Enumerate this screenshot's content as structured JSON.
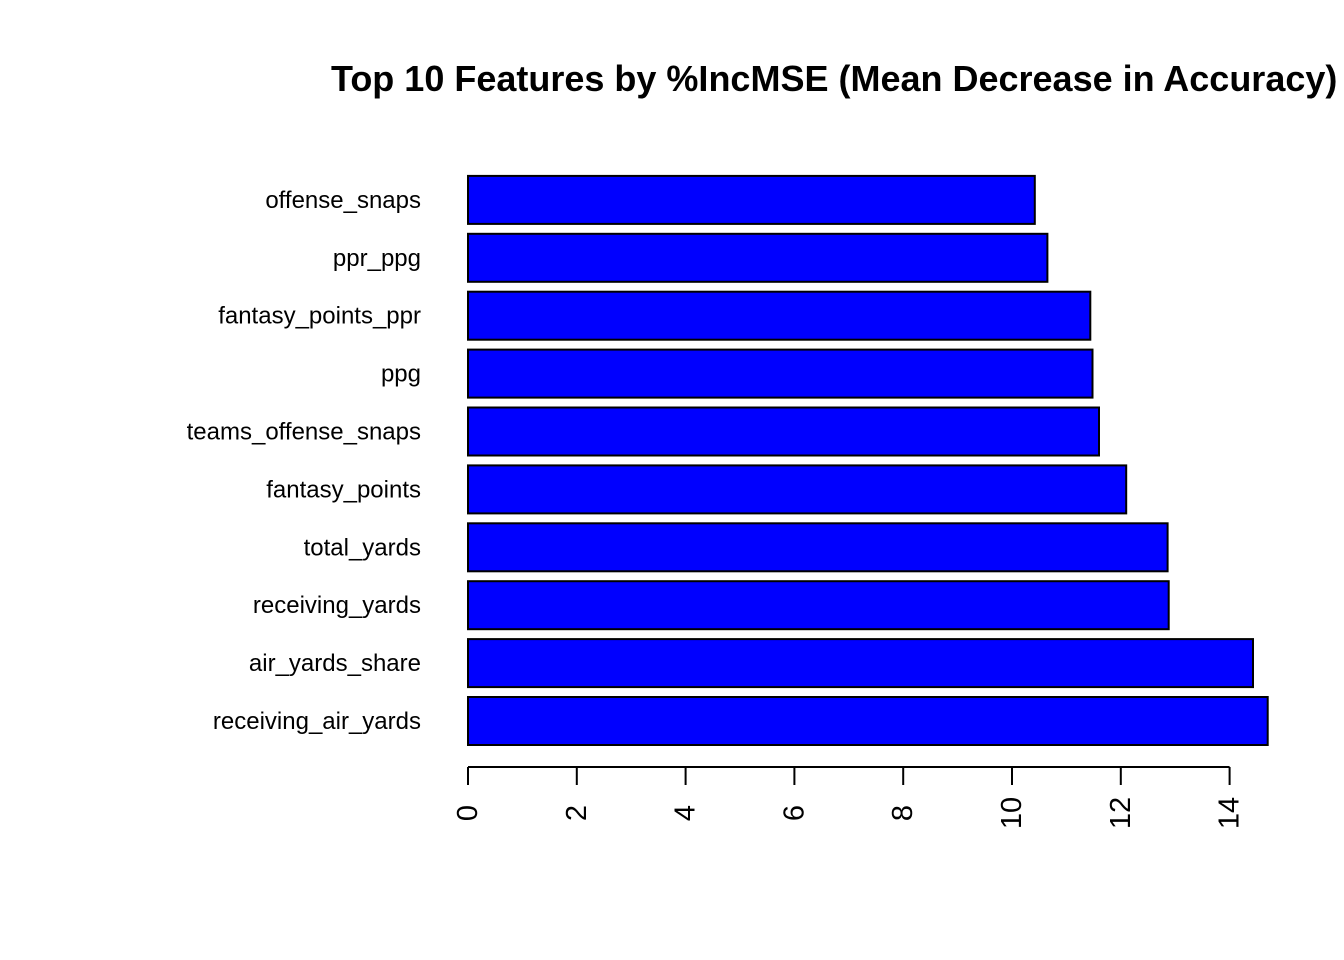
{
  "chart_data": {
    "type": "bar",
    "orientation": "horizontal",
    "title": "Top 10 Features by %IncMSE (Mean Decrease in Accuracy)",
    "xlabel": "",
    "ylabel": "",
    "categories": [
      "receiving_air_yards",
      "air_yards_share",
      "receiving_yards",
      "total_yards",
      "fantasy_points",
      "teams_offense_snaps",
      "ppg",
      "fantasy_points_ppr",
      "ppr_ppg",
      "offense_snaps"
    ],
    "values": [
      14.7,
      14.43,
      12.88,
      12.86,
      12.1,
      11.6,
      11.48,
      11.44,
      10.65,
      10.42
    ],
    "xlim": [
      0,
      14.7
    ],
    "xticks": [
      "0",
      "2",
      "4",
      "6",
      "8",
      "10",
      "12",
      "14"
    ],
    "bar_color": "#0000FF",
    "bar_border": "#000000",
    "grid": false,
    "legend": "none"
  }
}
